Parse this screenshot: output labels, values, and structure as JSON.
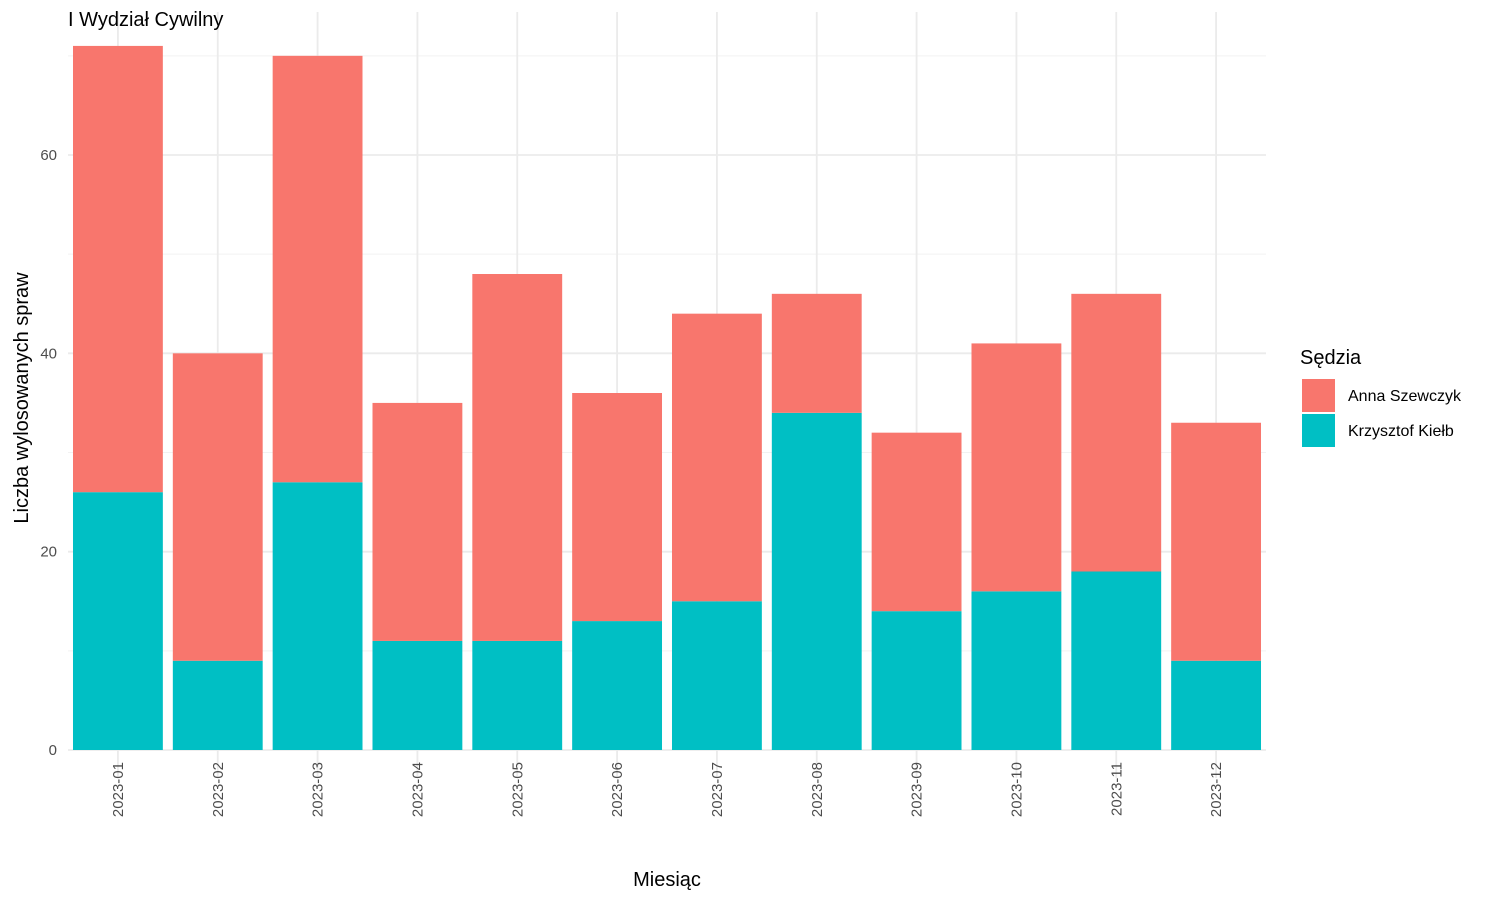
{
  "chart_data": {
    "type": "bar",
    "stacked": true,
    "title": "I Wydział Cywilny",
    "xlabel": "Miesiąc",
    "ylabel": "Liczba wylosowanych spraw",
    "categories": [
      "2023-01",
      "2023-02",
      "2023-03",
      "2023-04",
      "2023-05",
      "2023-06",
      "2023-07",
      "2023-08",
      "2023-09",
      "2023-10",
      "2023-11",
      "2023-12"
    ],
    "series": [
      {
        "name": "Anna Szewczyk",
        "color": "#F8766D",
        "values": [
          45,
          31,
          43,
          24,
          37,
          23,
          29,
          12,
          18,
          25,
          28,
          24
        ]
      },
      {
        "name": "Krzysztof Kiełb",
        "color": "#00BFC4",
        "values": [
          26,
          9,
          27,
          11,
          11,
          13,
          15,
          34,
          14,
          16,
          18,
          9
        ]
      }
    ],
    "ylim": [
      0,
      71
    ],
    "y_ticks": [
      0,
      20,
      40,
      60
    ],
    "grid": true,
    "legend": {
      "title": "Sędzia",
      "position": "right"
    }
  }
}
